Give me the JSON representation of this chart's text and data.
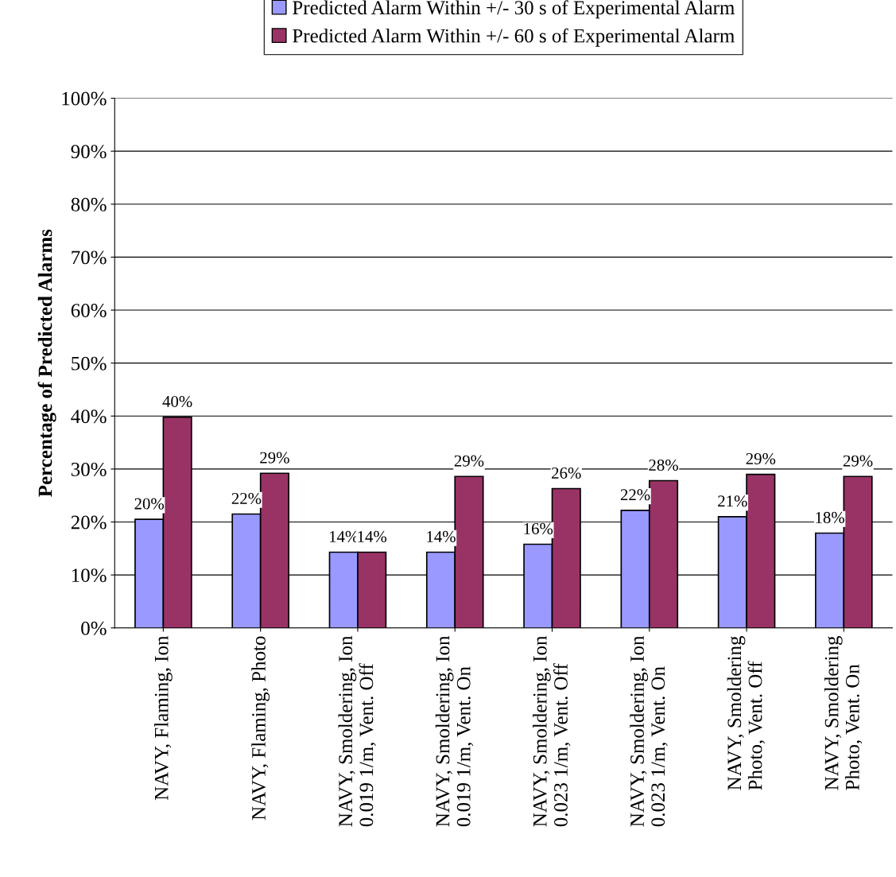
{
  "chart_data": {
    "type": "bar",
    "ylabel": "Percentage of Predicted Alarms",
    "categories": [
      "NAVY, Flaming, Ion",
      "NAVY, Flaming, Photo",
      "NAVY, Smoldering, Ion\n0.019 1/m, Vent. Off",
      "NAVY, Smoldering, Ion\n0.019 1/m, Vent. On",
      "NAVY, Smoldering, Ion\n0.023 1/m, Vent. Off",
      "NAVY, Smoldering, Ion\n0.023 1/m, Vent. On",
      "NAVY, Smoldering\nPhoto, Vent. Off",
      "NAVY, Smoldering\nPhoto, Vent. On"
    ],
    "series": [
      {
        "name": "Predicted Alarm Within +/- 30 s of Experimental Alarm",
        "color": "#9999ff",
        "values": [
          20.5,
          21.5,
          14.3,
          14.3,
          15.8,
          22.2,
          21.0,
          17.9
        ],
        "value_labels": [
          "20%",
          "22%",
          "14%",
          "14%",
          "16%",
          "22%",
          "21%",
          "18%"
        ]
      },
      {
        "name": "Predicted Alarm Within +/- 60 s of Experimental Alarm",
        "color": "#993366",
        "values": [
          39.8,
          29.2,
          14.3,
          28.6,
          26.3,
          27.8,
          29.0,
          28.6
        ],
        "value_labels": [
          "40%",
          "29%",
          "14%",
          "29%",
          "26%",
          "28%",
          "29%",
          "29%"
        ]
      }
    ],
    "ylim": [
      0,
      100
    ],
    "yticks": [
      {
        "value": 0,
        "label": "0%"
      },
      {
        "value": 10,
        "label": "10%"
      },
      {
        "value": 20,
        "label": "20%"
      },
      {
        "value": 30,
        "label": "30%"
      },
      {
        "value": 40,
        "label": "40%"
      },
      {
        "value": 50,
        "label": "50%"
      },
      {
        "value": 60,
        "label": "60%"
      },
      {
        "value": 70,
        "label": "70%"
      },
      {
        "value": 80,
        "label": "80%"
      },
      {
        "value": 90,
        "label": "90%"
      },
      {
        "value": 100,
        "label": "100%"
      }
    ],
    "grid": "y",
    "legend": "top"
  }
}
